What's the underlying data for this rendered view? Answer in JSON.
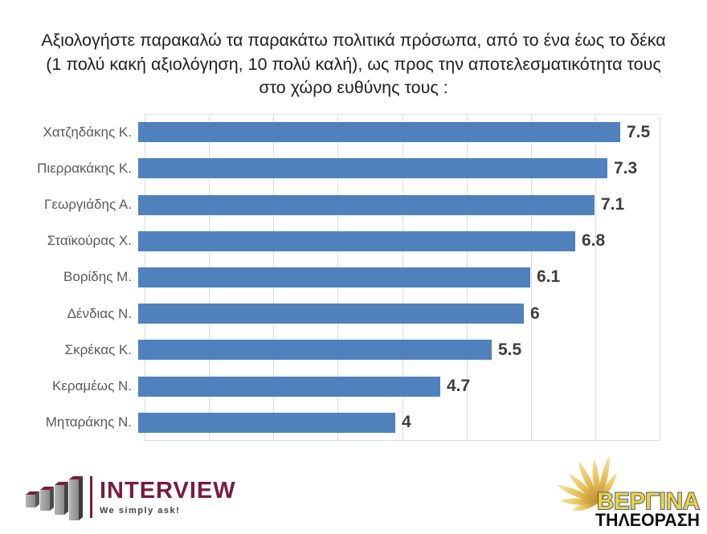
{
  "title_lines": [
    "Αξιολογήστε παρακαλώ τα παρακάτω πολιτικά πρόσωπα, από το ένα έως το δέκα",
    "(1 πολύ κακή αξιολόγηση, 10 πολύ καλή), ως προς την αποτελεσματικότητα τους",
    "στο χώρο ευθύνης τους :"
  ],
  "chart_data": {
    "type": "bar",
    "orientation": "horizontal",
    "title": "Αξιολογήστε παρακαλώ τα παρακάτω πολιτικά πρόσωπα, από το ένα έως το δέκα (1 πολύ κακή αξιολόγηση, 10 πολύ καλή), ως προς την αποτελεσματικότητα τους στο χώρο ευθύνης τους :",
    "categories": [
      "Χατζηδάκης Κ.",
      "Πιερρακάκης Κ.",
      "Γεωργιάδης Α.",
      "Σταϊκούρας Χ.",
      "Βορίδης Μ.",
      "Δένδιας Ν.",
      "Σκρέκας Κ.",
      "Κεραμέως Ν.",
      "Μηταράκης Ν."
    ],
    "values": [
      7.5,
      7.3,
      7.1,
      6.8,
      6.1,
      6,
      5.5,
      4.7,
      4
    ],
    "value_labels": [
      "7.5",
      "7.3",
      "7.1",
      "6.8",
      "6.1",
      "6",
      "5.5",
      "4.7",
      "4"
    ],
    "xlim": [
      0,
      8
    ],
    "gridline_interval": 1,
    "grid": true,
    "legend": false,
    "bar_color": "#4f81bd",
    "category_label_color": "#595959",
    "value_label_color": "#3d3d3d",
    "gridline_color": "#dcdcdc"
  },
  "footer": {
    "interview": {
      "name": "INTERVIEW",
      "tagline": "We simply ask!",
      "brand_color": "#7a1b3d"
    },
    "vergina": {
      "name": "ΒΕΡΓΙΝΑ",
      "subtitle": "ΤΗΛΕΟΡΑΣΗ",
      "sun_color": "#d3a23a",
      "name_fill": "#f2d22e",
      "name_stroke": "#2b4ea2",
      "subtitle_color": "#111111"
    }
  }
}
